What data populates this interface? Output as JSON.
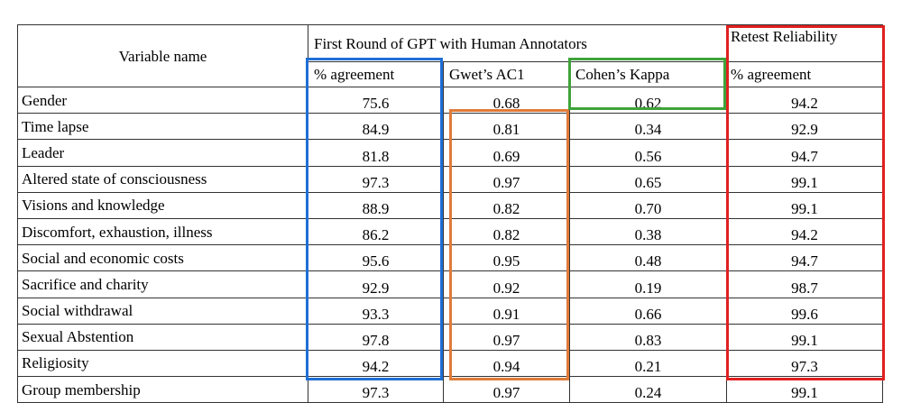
{
  "table": {
    "header": {
      "variable_name": "Variable name",
      "first_round": "First Round of GPT with Human Annotators",
      "retest": "Retest Reliability",
      "col_pct_agreement": "% agreement",
      "col_gwet": "Gwet’s AC1",
      "col_cohen": "Cohen’s Kappa",
      "col_retest_pct": "% agreement"
    },
    "rows": [
      {
        "name": "Gender",
        "pct": "75.6",
        "gwet": "0.68",
        "kappa": "0.62",
        "retest": "94.2"
      },
      {
        "name": "Time lapse",
        "pct": "84.9",
        "gwet": "0.81",
        "kappa": "0.34",
        "retest": "92.9"
      },
      {
        "name": "Leader",
        "pct": "81.8",
        "gwet": "0.69",
        "kappa": "0.56",
        "retest": "94.7"
      },
      {
        "name": "Altered state of consciousness",
        "pct": "97.3",
        "gwet": "0.97",
        "kappa": "0.65",
        "retest": "99.1"
      },
      {
        "name": "Visions and knowledge",
        "pct": "88.9",
        "gwet": "0.82",
        "kappa": "0.70",
        "retest": "99.1"
      },
      {
        "name": "Discomfort, exhaustion, illness",
        "pct": "86.2",
        "gwet": "0.82",
        "kappa": "0.38",
        "retest": "94.2"
      },
      {
        "name": "Social and economic costs",
        "pct": "95.6",
        "gwet": "0.95",
        "kappa": "0.48",
        "retest": "94.7"
      },
      {
        "name": "Sacrifice and charity",
        "pct": "92.9",
        "gwet": "0.92",
        "kappa": "0.19",
        "retest": "98.7"
      },
      {
        "name": "Social withdrawal",
        "pct": "93.3",
        "gwet": "0.91",
        "kappa": "0.66",
        "retest": "99.6"
      },
      {
        "name": "Sexual Abstention",
        "pct": "97.8",
        "gwet": "0.97",
        "kappa": "0.83",
        "retest": "99.1"
      },
      {
        "name": "Religiosity",
        "pct": "94.2",
        "gwet": "0.94",
        "kappa": "0.21",
        "retest": "97.3"
      },
      {
        "name": "Group membership",
        "pct": "97.3",
        "gwet": "0.97",
        "kappa": "0.24",
        "retest": "99.1"
      }
    ]
  },
  "highlight_colors": {
    "blue": "#1f6fd6",
    "orange": "#e07b39",
    "green": "#3fa33a",
    "red": "#e02020"
  }
}
